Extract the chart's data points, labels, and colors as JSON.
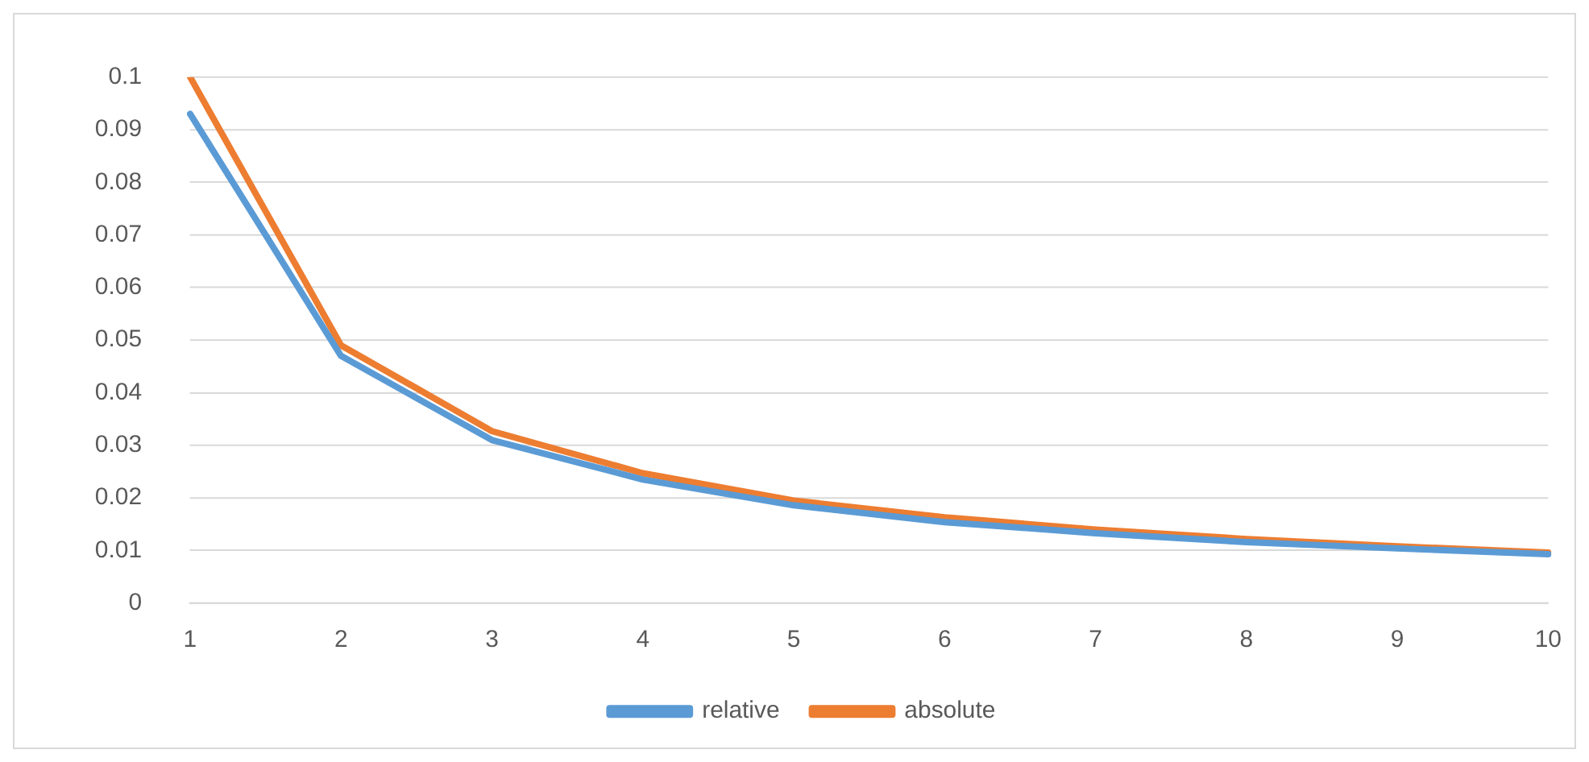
{
  "chart_data": {
    "type": "line",
    "categories": [
      "1",
      "2",
      "3",
      "4",
      "5",
      "6",
      "7",
      "8",
      "9",
      "10"
    ],
    "series": [
      {
        "name": "relative",
        "color": "#5b9bd5",
        "values": [
          0.093,
          0.047,
          0.031,
          0.0235,
          0.0186,
          0.0154,
          0.0133,
          0.0116,
          0.0104,
          0.0093
        ]
      },
      {
        "name": "absolute",
        "color": "#ed7d31",
        "values": [
          0.1,
          0.049,
          0.0327,
          0.0247,
          0.0195,
          0.0163,
          0.014,
          0.0122,
          0.0108,
          0.0096
        ]
      }
    ],
    "ylim": [
      0,
      0.1
    ],
    "yticks": [
      0,
      0.01,
      0.02,
      0.03,
      0.04,
      0.05,
      0.06,
      0.07,
      0.08,
      0.09,
      0.1
    ],
    "grid": "y",
    "legend": "bottom",
    "marker": "none",
    "line_style": "solid"
  }
}
